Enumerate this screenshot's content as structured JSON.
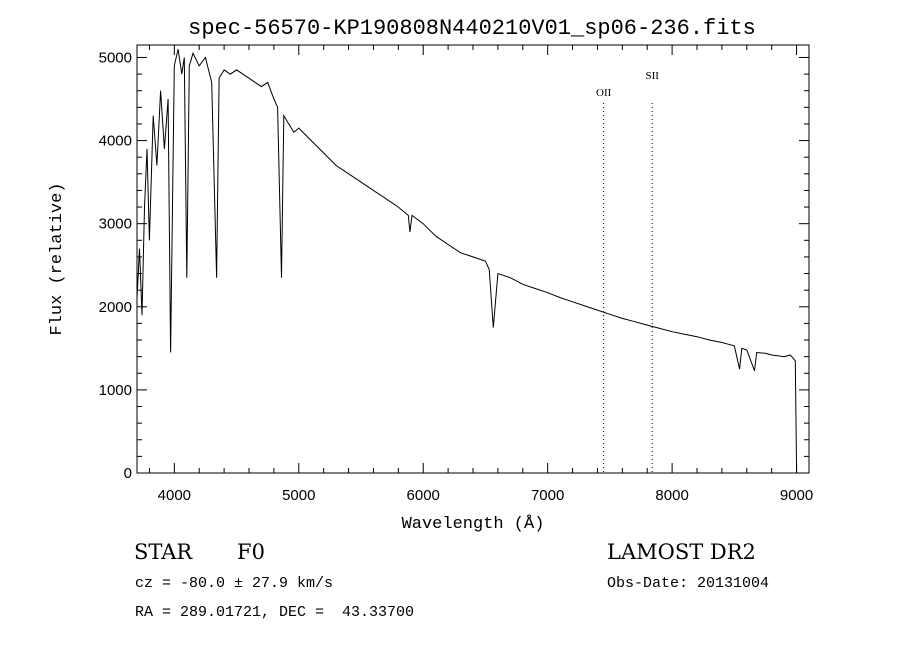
{
  "chart_data": {
    "type": "line",
    "title": "spec-56570-KP190808N440210V01_sp06-236.fits",
    "xlabel": "Wavelength (Å)",
    "ylabel": "Flux (relative)",
    "xlim": [
      3700,
      9100
    ],
    "ylim": [
      0,
      5150
    ],
    "xticks": [
      4000,
      5000,
      6000,
      7000,
      8000,
      9000
    ],
    "yticks": [
      0,
      1000,
      2000,
      3000,
      4000,
      5000
    ],
    "grid": false,
    "series": [
      {
        "x": [
          3700,
          3720,
          3740,
          3760,
          3780,
          3800,
          3830,
          3860,
          3890,
          3920,
          3950,
          3970,
          4000,
          4030,
          4060,
          4080,
          4100,
          4120,
          4150,
          4200,
          4250,
          4300,
          4340,
          4360,
          4400,
          4450,
          4500,
          4550,
          4600,
          4650,
          4700,
          4750,
          4800,
          4830,
          4861,
          4880,
          4920,
          4960,
          5000,
          5100,
          5200,
          5300,
          5400,
          5500,
          5600,
          5700,
          5800,
          5880,
          5893,
          5910,
          6000,
          6100,
          6200,
          6300,
          6400,
          6500,
          6530,
          6563,
          6600,
          6700,
          6800,
          6900,
          7000,
          7100,
          7200,
          7300,
          7400,
          7500,
          7600,
          7700,
          7800,
          7900,
          8000,
          8100,
          8200,
          8300,
          8400,
          8450,
          8500,
          8542,
          8560,
          8600,
          8662,
          8680,
          8750,
          8800,
          8850,
          8900,
          8950,
          8990,
          9000
        ],
        "y": [
          2100,
          2700,
          1900,
          3200,
          3900,
          2800,
          4300,
          3700,
          4600,
          3900,
          4500,
          1450,
          4900,
          5100,
          4800,
          5000,
          2350,
          4900,
          5050,
          4900,
          5000,
          4700,
          2350,
          4750,
          4850,
          4800,
          4850,
          4800,
          4750,
          4700,
          4650,
          4700,
          4500,
          4400,
          2350,
          4300,
          4200,
          4100,
          4150,
          4000,
          3850,
          3700,
          3600,
          3500,
          3400,
          3300,
          3200,
          3100,
          2900,
          3100,
          3000,
          2850,
          2750,
          2650,
          2600,
          2550,
          2450,
          1750,
          2400,
          2350,
          2270,
          2220,
          2170,
          2110,
          2060,
          2010,
          1960,
          1910,
          1860,
          1820,
          1780,
          1740,
          1700,
          1670,
          1640,
          1600,
          1570,
          1550,
          1530,
          1250,
          1500,
          1480,
          1230,
          1450,
          1440,
          1420,
          1410,
          1400,
          1420,
          1350,
          0
        ]
      }
    ],
    "annotations": [
      {
        "label": "OII",
        "x": 7450
      },
      {
        "label": "SII",
        "x": 7840
      }
    ]
  },
  "info": {
    "object_class": "STAR",
    "subclass": "F0",
    "survey": "LAMOST DR2",
    "cz": "cz = -80.0 ± 27.9 km/s",
    "obs_date": "Obs-Date: 20131004",
    "coords": "RA = 289.01721, DEC =  43.33700"
  }
}
